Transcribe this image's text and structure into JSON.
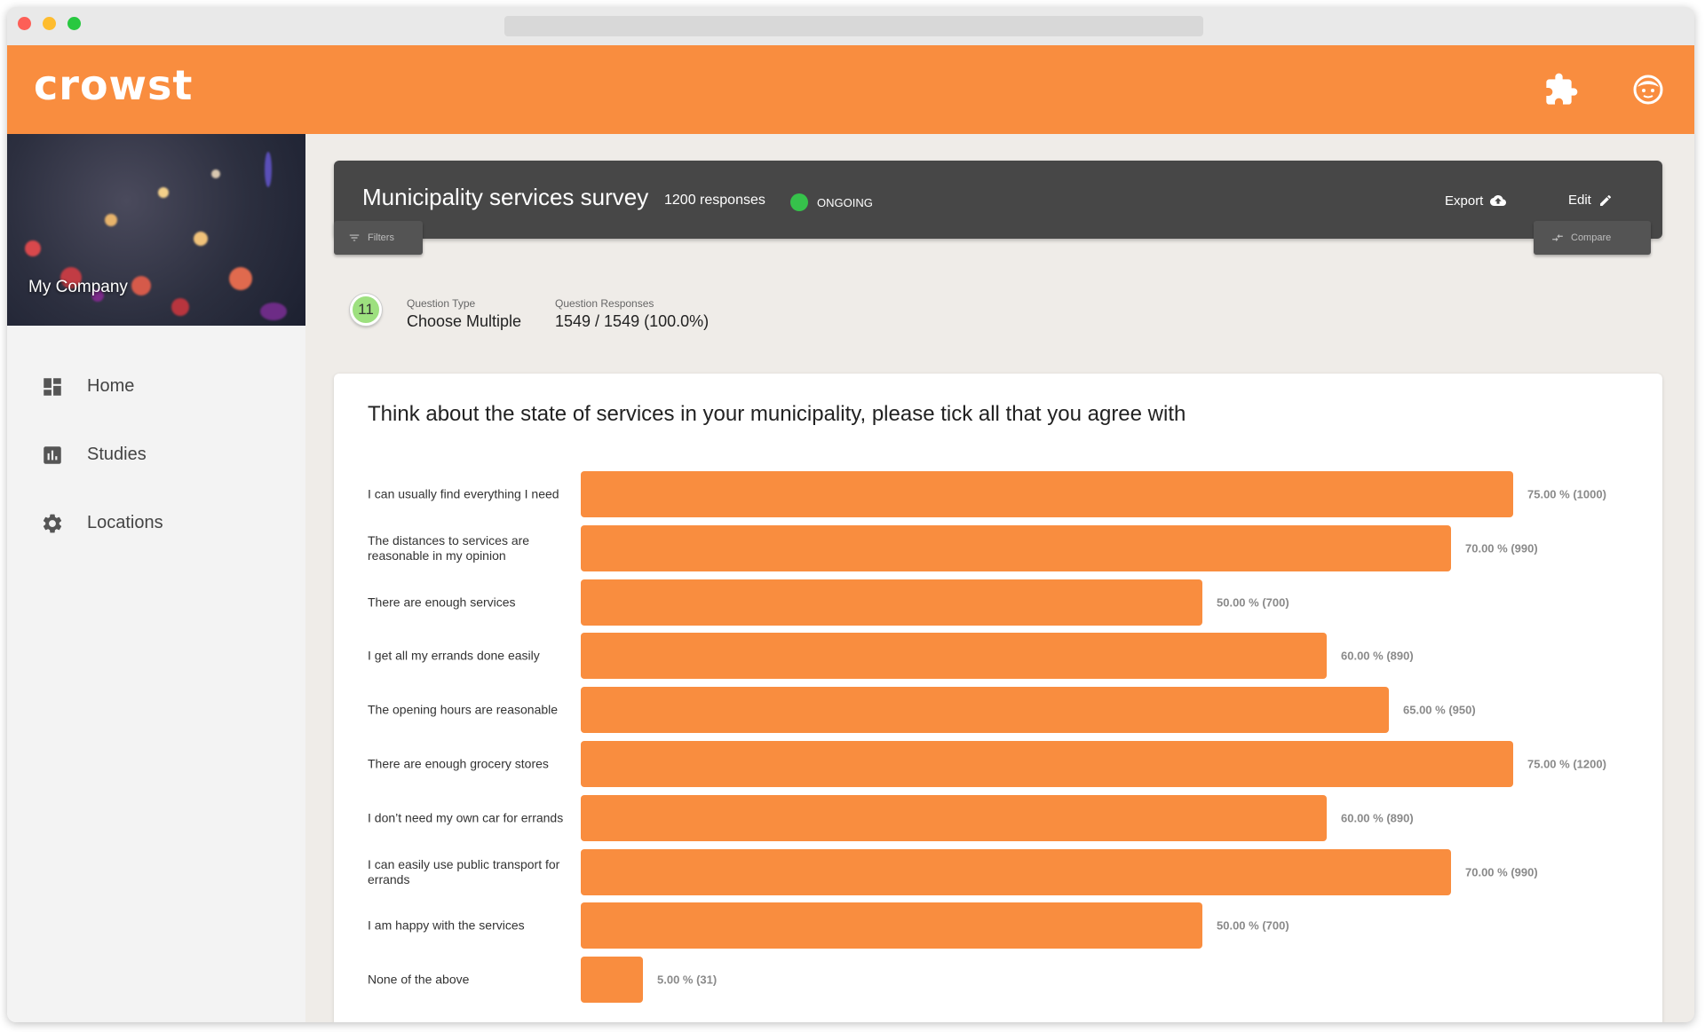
{
  "app": {
    "logo_text": "crowst",
    "brand_color": "#f98d3f"
  },
  "header": {
    "icons": [
      "puzzle-icon",
      "face-icon"
    ]
  },
  "sidebar": {
    "company": "My Company",
    "items": [
      {
        "label": "Home",
        "icon": "dashboard-icon"
      },
      {
        "label": "Studies",
        "icon": "bar-chart-icon"
      },
      {
        "label": "Locations",
        "icon": "gear-icon"
      }
    ]
  },
  "survey": {
    "title": "Municipality services survey",
    "responses": "1200 responses",
    "status": "ONGOING",
    "status_color": "#36c24b",
    "export_label": "Export",
    "edit_label": "Edit",
    "filters_label": "Filters",
    "compare_label": "Compare"
  },
  "question": {
    "number": "11",
    "type_label": "Question Type",
    "type_value": "Choose Multiple",
    "responses_label": "Question Responses",
    "responses_value": "1549 / 1549 (100.0%)",
    "title": "Think about the state of services in your municipality, please tick all that you agree with"
  },
  "chart_data": {
    "type": "bar",
    "orientation": "horizontal",
    "categories": [
      "I can usually find everything I need",
      "The distances to services are reasonable in my opinion",
      "There are enough services",
      "I get all my errands done easily",
      "The opening hours are reasonable",
      "There are enough grocery stores",
      "I don’t need my own car for errands",
      "I can easily use public transport for errands",
      "I am happy with the services",
      "None of the above"
    ],
    "values": [
      75,
      70,
      50,
      60,
      65,
      75,
      60,
      70,
      50,
      5
    ],
    "value_labels": [
      "75.00 % (1000)",
      "70.00 % (990)",
      "50.00 % (700)",
      "60.00 % (890)",
      "65.00 % (950)",
      "75.00 % (1200)",
      "60.00 % (890)",
      "70.00 % (990)",
      "50.00 % (700)",
      "5.00 % (31)"
    ],
    "title": "Think about the state of services in your municipality, please tick all that you agree with",
    "bar_color": "#f98d3f"
  }
}
